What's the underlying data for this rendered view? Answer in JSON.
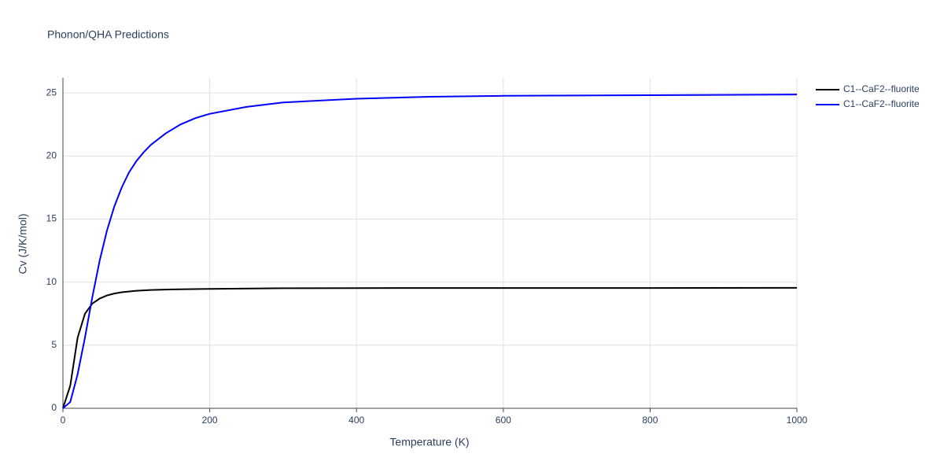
{
  "chart_data": {
    "type": "line",
    "title": "Phonon/QHA Predictions",
    "x_label": "Temperature (K)",
    "y_label": "Cv (J/K/mol)",
    "xlim": [
      0,
      1000
    ],
    "xticks": [
      0,
      200,
      400,
      600,
      800,
      1000
    ],
    "ylim": [
      0,
      26.2
    ],
    "yticks": [
      0,
      5,
      10,
      15,
      20,
      25
    ],
    "grid": true,
    "legend": "outside-right",
    "series": [
      {
        "name": "C1--CaF2--fluorite",
        "color": "#000000",
        "x": [
          0,
          10,
          20,
          30,
          40,
          50,
          60,
          70,
          80,
          100,
          120,
          150,
          200,
          300,
          400,
          600,
          800,
          1000
        ],
        "values": [
          0,
          1.8,
          5.6,
          7.5,
          8.3,
          8.7,
          8.95,
          9.1,
          9.2,
          9.32,
          9.38,
          9.43,
          9.47,
          9.52,
          9.53,
          9.54,
          9.54,
          9.55
        ]
      },
      {
        "name": "C1--CaF2--fluorite",
        "color": "#0000ff",
        "x": [
          0,
          10,
          20,
          30,
          40,
          50,
          60,
          70,
          80,
          90,
          100,
          110,
          120,
          140,
          160,
          180,
          200,
          250,
          300,
          400,
          500,
          600,
          800,
          1000
        ],
        "values": [
          0,
          0.5,
          2.7,
          5.6,
          8.8,
          11.7,
          14.1,
          16.0,
          17.5,
          18.7,
          19.6,
          20.3,
          20.9,
          21.8,
          22.5,
          23.0,
          23.35,
          23.9,
          24.25,
          24.55,
          24.7,
          24.78,
          24.83,
          24.88
        ]
      }
    ]
  }
}
